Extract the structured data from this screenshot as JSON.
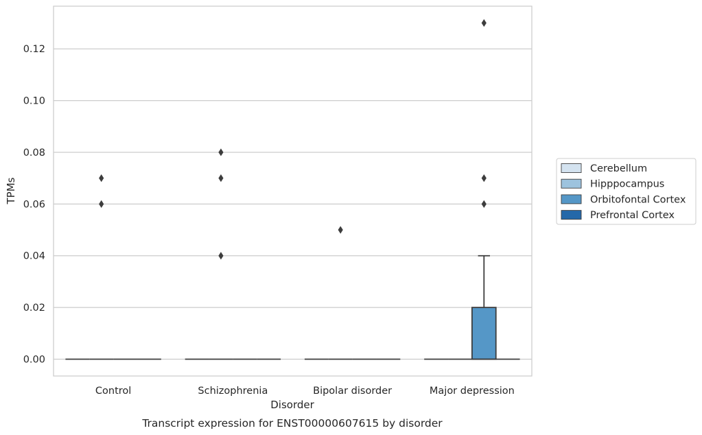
{
  "chart_data": {
    "type": "box",
    "title": "",
    "caption": "Transcript expression for ENST00000607615 by disorder",
    "xlabel": "Disorder",
    "ylabel": "TPMs",
    "ylim": [
      -0.0065,
      0.1365
    ],
    "yticks": [
      0.0,
      0.02,
      0.04,
      0.06,
      0.08,
      0.1,
      0.12
    ],
    "ytick_labels": [
      "0.00",
      "0.02",
      "0.04",
      "0.06",
      "0.08",
      "0.10",
      "0.12"
    ],
    "grid": "horizontal",
    "legend_position": "right",
    "categories": [
      "Control",
      "Schizophrenia",
      "Bipolar disorder",
      "Major depression"
    ],
    "series": [
      {
        "name": "Cerebellum",
        "color": "#d4e3f0",
        "boxes": [
          {
            "category": "Control",
            "q1": 0,
            "median": 0,
            "q3": 0,
            "whisker_low": 0,
            "whisker_high": 0,
            "outliers": []
          },
          {
            "category": "Schizophrenia",
            "q1": 0,
            "median": 0,
            "q3": 0,
            "whisker_low": 0,
            "whisker_high": 0,
            "outliers": []
          },
          {
            "category": "Bipolar disorder",
            "q1": 0,
            "median": 0,
            "q3": 0,
            "whisker_low": 0,
            "whisker_high": 0,
            "outliers": []
          },
          {
            "category": "Major depression",
            "q1": 0,
            "median": 0,
            "q3": 0,
            "whisker_low": 0,
            "whisker_high": 0,
            "outliers": []
          }
        ]
      },
      {
        "name": "Hipppocampus",
        "color": "#9dc3de",
        "boxes": [
          {
            "category": "Control",
            "q1": 0,
            "median": 0,
            "q3": 0,
            "whisker_low": 0,
            "whisker_high": 0,
            "outliers": [
              0.06,
              0.07
            ]
          },
          {
            "category": "Schizophrenia",
            "q1": 0,
            "median": 0,
            "q3": 0,
            "whisker_low": 0,
            "whisker_high": 0,
            "outliers": [
              0.04,
              0.07,
              0.08
            ]
          },
          {
            "category": "Bipolar disorder",
            "q1": 0,
            "median": 0,
            "q3": 0,
            "whisker_low": 0,
            "whisker_high": 0,
            "outliers": [
              0.05
            ]
          },
          {
            "category": "Major depression",
            "q1": 0,
            "median": 0,
            "q3": 0,
            "whisker_low": 0,
            "whisker_high": 0,
            "outliers": []
          }
        ]
      },
      {
        "name": "Orbitofontal Cortex",
        "color": "#5597c7",
        "boxes": [
          {
            "category": "Control",
            "q1": 0,
            "median": 0,
            "q3": 0,
            "whisker_low": 0,
            "whisker_high": 0,
            "outliers": []
          },
          {
            "category": "Schizophrenia",
            "q1": 0,
            "median": 0,
            "q3": 0,
            "whisker_low": 0,
            "whisker_high": 0,
            "outliers": []
          },
          {
            "category": "Bipolar disorder",
            "q1": 0,
            "median": 0,
            "q3": 0,
            "whisker_low": 0,
            "whisker_high": 0,
            "outliers": []
          },
          {
            "category": "Major depression",
            "q1": 0,
            "median": 0,
            "q3": 0.02,
            "whisker_low": 0,
            "whisker_high": 0.04,
            "outliers": [
              0.06,
              0.07,
              0.13
            ]
          }
        ]
      },
      {
        "name": "Prefrontal Cortex",
        "color": "#2468a9",
        "boxes": [
          {
            "category": "Control",
            "q1": 0,
            "median": 0,
            "q3": 0,
            "whisker_low": 0,
            "whisker_high": 0,
            "outliers": []
          },
          {
            "category": "Schizophrenia",
            "q1": 0,
            "median": 0,
            "q3": 0,
            "whisker_low": 0,
            "whisker_high": 0,
            "outliers": []
          },
          {
            "category": "Bipolar disorder",
            "q1": 0,
            "median": 0,
            "q3": 0,
            "whisker_low": 0,
            "whisker_high": 0,
            "outliers": []
          },
          {
            "category": "Major depression",
            "q1": 0,
            "median": 0,
            "q3": 0,
            "whisker_low": 0,
            "whisker_high": 0,
            "outliers": []
          }
        ]
      }
    ]
  }
}
